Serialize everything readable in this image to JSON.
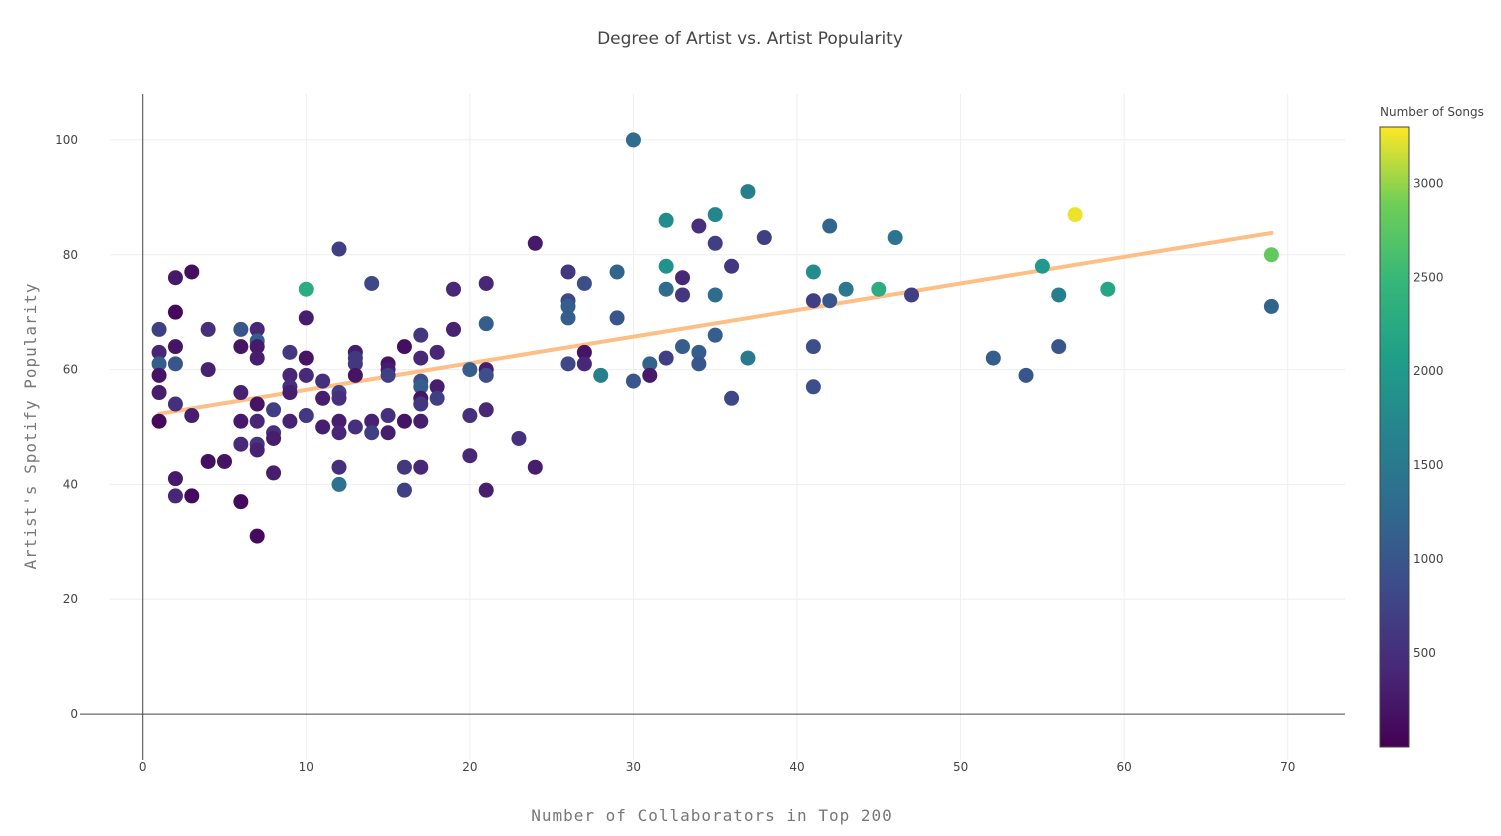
{
  "chart_data": {
    "type": "scatter",
    "title": "Degree of Artist vs. Artist Popularity",
    "xlabel": "Number of Collaborators in Top 200",
    "ylabel": "Artist's Spotify Popularity",
    "xlim": [
      -2,
      73.5
    ],
    "ylim": [
      -8,
      108
    ],
    "x_ticks": [
      0,
      10,
      20,
      30,
      40,
      50,
      60,
      70
    ],
    "y_ticks": [
      0,
      20,
      40,
      60,
      80,
      100
    ],
    "grid": true,
    "colorbar": {
      "title": "Number of Songs",
      "range": [
        0,
        3300
      ],
      "ticks": [
        500,
        1000,
        1500,
        2000,
        2500,
        3000
      ],
      "colorscale": "viridis"
    },
    "trendline": {
      "x": [
        1,
        69
      ],
      "y": [
        52.3,
        83.8
      ],
      "color": "#fdbf85"
    },
    "points": [
      {
        "x": 1,
        "y": 67,
        "c": 700
      },
      {
        "x": 1,
        "y": 63,
        "c": 400
      },
      {
        "x": 1,
        "y": 61,
        "c": 1100
      },
      {
        "x": 1,
        "y": 59,
        "c": 200
      },
      {
        "x": 1,
        "y": 56,
        "c": 300
      },
      {
        "x": 1,
        "y": 51,
        "c": 100
      },
      {
        "x": 2,
        "y": 76,
        "c": 250
      },
      {
        "x": 2,
        "y": 70,
        "c": 80
      },
      {
        "x": 2,
        "y": 64,
        "c": 200
      },
      {
        "x": 2,
        "y": 61,
        "c": 1000
      },
      {
        "x": 2,
        "y": 54,
        "c": 500
      },
      {
        "x": 2,
        "y": 41,
        "c": 250
      },
      {
        "x": 2,
        "y": 38,
        "c": 400
      },
      {
        "x": 3,
        "y": 77,
        "c": 150
      },
      {
        "x": 3,
        "y": 52,
        "c": 300
      },
      {
        "x": 3,
        "y": 38,
        "c": 100
      },
      {
        "x": 4,
        "y": 67,
        "c": 500
      },
      {
        "x": 4,
        "y": 60,
        "c": 350
      },
      {
        "x": 4,
        "y": 44,
        "c": 150
      },
      {
        "x": 5,
        "y": 44,
        "c": 200
      },
      {
        "x": 6,
        "y": 67,
        "c": 1000
      },
      {
        "x": 6,
        "y": 64,
        "c": 200
      },
      {
        "x": 6,
        "y": 56,
        "c": 350
      },
      {
        "x": 6,
        "y": 51,
        "c": 250
      },
      {
        "x": 6,
        "y": 47,
        "c": 450
      },
      {
        "x": 6,
        "y": 37,
        "c": 100
      },
      {
        "x": 7,
        "y": 67,
        "c": 400
      },
      {
        "x": 7,
        "y": 65,
        "c": 1100
      },
      {
        "x": 7,
        "y": 64,
        "c": 250
      },
      {
        "x": 7,
        "y": 62,
        "c": 300
      },
      {
        "x": 7,
        "y": 54,
        "c": 200
      },
      {
        "x": 7,
        "y": 51,
        "c": 400
      },
      {
        "x": 7,
        "y": 47,
        "c": 600
      },
      {
        "x": 7,
        "y": 46,
        "c": 350
      },
      {
        "x": 7,
        "y": 31,
        "c": 100
      },
      {
        "x": 8,
        "y": 53,
        "c": 700
      },
      {
        "x": 8,
        "y": 49,
        "c": 500
      },
      {
        "x": 8,
        "y": 48,
        "c": 300
      },
      {
        "x": 8,
        "y": 42,
        "c": 300
      },
      {
        "x": 9,
        "y": 63,
        "c": 600
      },
      {
        "x": 9,
        "y": 59,
        "c": 400
      },
      {
        "x": 9,
        "y": 57,
        "c": 500
      },
      {
        "x": 9,
        "y": 56,
        "c": 300
      },
      {
        "x": 9,
        "y": 51,
        "c": 350
      },
      {
        "x": 10,
        "y": 74,
        "c": 2300
      },
      {
        "x": 10,
        "y": 69,
        "c": 300
      },
      {
        "x": 10,
        "y": 62,
        "c": 200
      },
      {
        "x": 10,
        "y": 59,
        "c": 450
      },
      {
        "x": 10,
        "y": 52,
        "c": 600
      },
      {
        "x": 11,
        "y": 58,
        "c": 500
      },
      {
        "x": 11,
        "y": 55,
        "c": 300
      },
      {
        "x": 11,
        "y": 50,
        "c": 300
      },
      {
        "x": 12,
        "y": 81,
        "c": 700
      },
      {
        "x": 12,
        "y": 56,
        "c": 700
      },
      {
        "x": 12,
        "y": 55,
        "c": 500
      },
      {
        "x": 12,
        "y": 51,
        "c": 300
      },
      {
        "x": 12,
        "y": 49,
        "c": 400
      },
      {
        "x": 12,
        "y": 43,
        "c": 500
      },
      {
        "x": 12,
        "y": 40,
        "c": 1400
      },
      {
        "x": 13,
        "y": 63,
        "c": 300
      },
      {
        "x": 13,
        "y": 62,
        "c": 600
      },
      {
        "x": 13,
        "y": 61,
        "c": 600
      },
      {
        "x": 13,
        "y": 59,
        "c": 200
      },
      {
        "x": 13,
        "y": 50,
        "c": 500
      },
      {
        "x": 14,
        "y": 75,
        "c": 800
      },
      {
        "x": 14,
        "y": 51,
        "c": 350
      },
      {
        "x": 14,
        "y": 49,
        "c": 700
      },
      {
        "x": 15,
        "y": 61,
        "c": 200
      },
      {
        "x": 15,
        "y": 60,
        "c": 300
      },
      {
        "x": 15,
        "y": 59,
        "c": 700
      },
      {
        "x": 15,
        "y": 52,
        "c": 500
      },
      {
        "x": 15,
        "y": 49,
        "c": 300
      },
      {
        "x": 16,
        "y": 64,
        "c": 150
      },
      {
        "x": 16,
        "y": 51,
        "c": 200
      },
      {
        "x": 16,
        "y": 43,
        "c": 600
      },
      {
        "x": 16,
        "y": 39,
        "c": 700
      },
      {
        "x": 17,
        "y": 66,
        "c": 600
      },
      {
        "x": 17,
        "y": 62,
        "c": 400
      },
      {
        "x": 17,
        "y": 58,
        "c": 900
      },
      {
        "x": 17,
        "y": 57,
        "c": 1100
      },
      {
        "x": 17,
        "y": 55,
        "c": 200
      },
      {
        "x": 17,
        "y": 54,
        "c": 600
      },
      {
        "x": 17,
        "y": 51,
        "c": 300
      },
      {
        "x": 17,
        "y": 43,
        "c": 400
      },
      {
        "x": 18,
        "y": 63,
        "c": 400
      },
      {
        "x": 18,
        "y": 57,
        "c": 300
      },
      {
        "x": 18,
        "y": 55,
        "c": 700
      },
      {
        "x": 19,
        "y": 74,
        "c": 400
      },
      {
        "x": 19,
        "y": 67,
        "c": 350
      },
      {
        "x": 20,
        "y": 60,
        "c": 1100
      },
      {
        "x": 20,
        "y": 52,
        "c": 500
      },
      {
        "x": 20,
        "y": 45,
        "c": 400
      },
      {
        "x": 21,
        "y": 75,
        "c": 400
      },
      {
        "x": 21,
        "y": 68,
        "c": 1100
      },
      {
        "x": 21,
        "y": 60,
        "c": 300
      },
      {
        "x": 21,
        "y": 59,
        "c": 900
      },
      {
        "x": 21,
        "y": 53,
        "c": 400
      },
      {
        "x": 21,
        "y": 39,
        "c": 300
      },
      {
        "x": 23,
        "y": 48,
        "c": 500
      },
      {
        "x": 24,
        "y": 82,
        "c": 250
      },
      {
        "x": 24,
        "y": 43,
        "c": 300
      },
      {
        "x": 26,
        "y": 77,
        "c": 600
      },
      {
        "x": 26,
        "y": 72,
        "c": 800
      },
      {
        "x": 26,
        "y": 71,
        "c": 1100
      },
      {
        "x": 26,
        "y": 69,
        "c": 1100
      },
      {
        "x": 26,
        "y": 61,
        "c": 800
      },
      {
        "x": 27,
        "y": 75,
        "c": 900
      },
      {
        "x": 27,
        "y": 63,
        "c": 200
      },
      {
        "x": 27,
        "y": 61,
        "c": 400
      },
      {
        "x": 28,
        "y": 59,
        "c": 1600
      },
      {
        "x": 29,
        "y": 77,
        "c": 1200
      },
      {
        "x": 29,
        "y": 69,
        "c": 1000
      },
      {
        "x": 30,
        "y": 100,
        "c": 1300
      },
      {
        "x": 30,
        "y": 58,
        "c": 1000
      },
      {
        "x": 31,
        "y": 61,
        "c": 1200
      },
      {
        "x": 31,
        "y": 59,
        "c": 250
      },
      {
        "x": 32,
        "y": 86,
        "c": 1800
      },
      {
        "x": 32,
        "y": 78,
        "c": 1900
      },
      {
        "x": 32,
        "y": 74,
        "c": 1300
      },
      {
        "x": 32,
        "y": 62,
        "c": 700
      },
      {
        "x": 33,
        "y": 76,
        "c": 400
      },
      {
        "x": 33,
        "y": 73,
        "c": 600
      },
      {
        "x": 33,
        "y": 64,
        "c": 1100
      },
      {
        "x": 34,
        "y": 85,
        "c": 500
      },
      {
        "x": 34,
        "y": 63,
        "c": 1100
      },
      {
        "x": 34,
        "y": 61,
        "c": 1000
      },
      {
        "x": 35,
        "y": 87,
        "c": 1700
      },
      {
        "x": 35,
        "y": 82,
        "c": 700
      },
      {
        "x": 35,
        "y": 73,
        "c": 1300
      },
      {
        "x": 35,
        "y": 66,
        "c": 1100
      },
      {
        "x": 36,
        "y": 78,
        "c": 600
      },
      {
        "x": 36,
        "y": 55,
        "c": 800
      },
      {
        "x": 37,
        "y": 91,
        "c": 1600
      },
      {
        "x": 37,
        "y": 62,
        "c": 1500
      },
      {
        "x": 38,
        "y": 83,
        "c": 700
      },
      {
        "x": 41,
        "y": 77,
        "c": 1800
      },
      {
        "x": 41,
        "y": 72,
        "c": 700
      },
      {
        "x": 41,
        "y": 64,
        "c": 900
      },
      {
        "x": 41,
        "y": 57,
        "c": 900
      },
      {
        "x": 42,
        "y": 85,
        "c": 1200
      },
      {
        "x": 42,
        "y": 72,
        "c": 1000
      },
      {
        "x": 43,
        "y": 74,
        "c": 1500
      },
      {
        "x": 45,
        "y": 74,
        "c": 2300
      },
      {
        "x": 46,
        "y": 83,
        "c": 1400
      },
      {
        "x": 47,
        "y": 73,
        "c": 700
      },
      {
        "x": 52,
        "y": 62,
        "c": 1100
      },
      {
        "x": 54,
        "y": 59,
        "c": 1000
      },
      {
        "x": 55,
        "y": 78,
        "c": 2000
      },
      {
        "x": 56,
        "y": 73,
        "c": 1600
      },
      {
        "x": 56,
        "y": 64,
        "c": 1000
      },
      {
        "x": 57,
        "y": 87,
        "c": 3250
      },
      {
        "x": 59,
        "y": 74,
        "c": 2200
      },
      {
        "x": 69,
        "y": 80,
        "c": 2800
      },
      {
        "x": 69,
        "y": 71,
        "c": 1200
      }
    ]
  }
}
